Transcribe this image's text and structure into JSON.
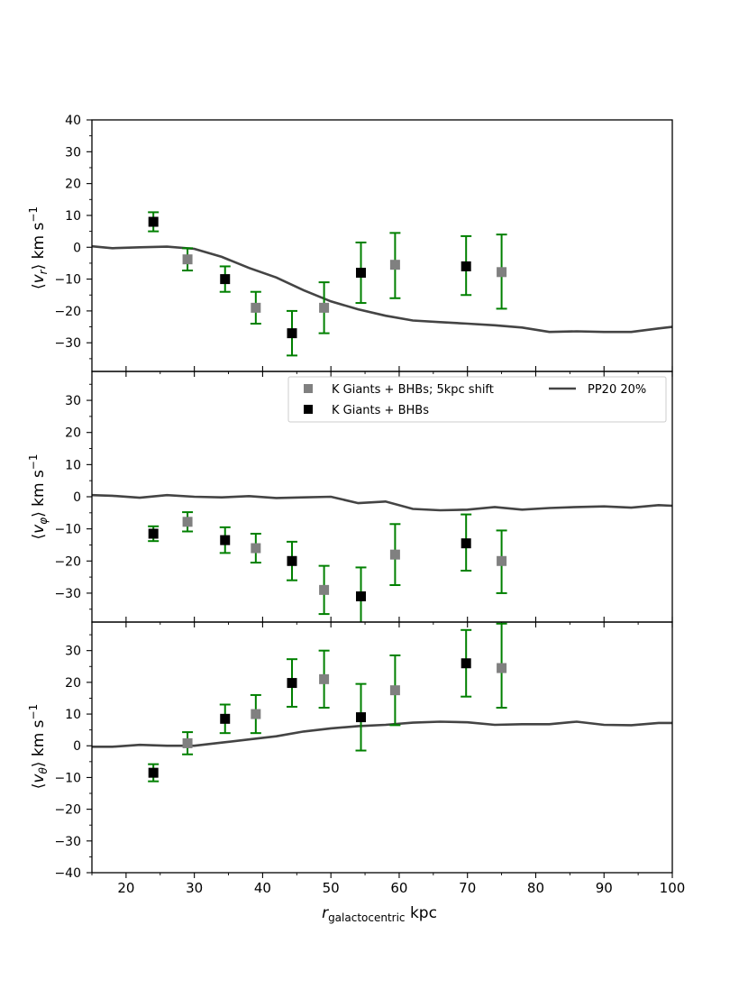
{
  "figure": {
    "xlabel_main": "r",
    "xlabel_sub": "galactocentric",
    "xlabel_unit": "kpc"
  },
  "legend": {
    "shifted_label": "K Giants + BHBs; 5kpc shift",
    "main_label": "K Giants + BHBs",
    "model_label": "PP20 20%",
    "placement": "top-right of middle panel"
  },
  "colors": {
    "shifted": "#808080",
    "main": "#000000",
    "errorbar": "#008000",
    "model": "#444444"
  },
  "chart_data": [
    {
      "type": "scatter",
      "panel": "vr",
      "ylabel_sym": "v",
      "ylabel_sub": "r",
      "ylabel_unit": "km s",
      "xlim": [
        15,
        100
      ],
      "ylim": [
        -39,
        40
      ],
      "xticks": [
        20,
        30,
        40,
        50,
        60,
        70,
        80,
        90,
        100
      ],
      "yticks": [
        -30,
        -20,
        -10,
        0,
        10,
        20,
        30,
        40
      ],
      "series": [
        {
          "name": "K Giants + BHBs",
          "x": [
            24,
            34.5,
            44.3,
            54.4,
            69.8
          ],
          "y": [
            8,
            -10,
            -27,
            -8,
            -6
          ],
          "yerr_low": [
            3,
            4,
            7,
            9.5,
            9
          ],
          "yerr_high": [
            3,
            4,
            7,
            9.5,
            9.5
          ]
        },
        {
          "name": "K Giants + BHBs; 5kpc shift",
          "x": [
            29,
            39,
            49,
            59.4,
            75
          ],
          "y": [
            -3.8,
            -19,
            -19,
            -5.5,
            -7.8
          ],
          "yerr_low": [
            3.5,
            5,
            8,
            10.5,
            11.5
          ],
          "yerr_high": [
            3.5,
            5,
            8,
            10,
            11.8
          ]
        },
        {
          "name": "PP20 20%",
          "x": [
            15,
            18,
            22,
            26,
            30,
            34,
            38,
            42,
            46,
            50,
            54,
            58,
            62,
            66,
            70,
            74,
            78,
            82,
            86,
            90,
            94,
            98,
            100
          ],
          "y": [
            0.3,
            -0.3,
            0,
            0.2,
            -0.5,
            -3,
            -6.5,
            -9.5,
            -13.5,
            -17,
            -19.5,
            -21.5,
            -23,
            -23.5,
            -24,
            -24.5,
            -25.2,
            -26.6,
            -26.4,
            -26.6,
            -26.6,
            -25.5,
            -25
          ]
        }
      ]
    },
    {
      "type": "scatter",
      "panel": "vphi",
      "ylabel_sym": "v",
      "ylabel_sub": "φ",
      "ylabel_unit": "km s",
      "xlim": [
        15,
        100
      ],
      "ylim": [
        -39,
        39
      ],
      "xticks": [
        20,
        30,
        40,
        50,
        60,
        70,
        80,
        90,
        100
      ],
      "yticks": [
        -30,
        -20,
        -10,
        0,
        10,
        20,
        30
      ],
      "series": [
        {
          "name": "K Giants + BHBs",
          "x": [
            24,
            34.5,
            44.3,
            54.4,
            69.8
          ],
          "y": [
            -11.5,
            -13.5,
            -20,
            -31,
            -14.5
          ],
          "yerr_low": [
            2.3,
            4,
            6,
            9,
            8.5
          ],
          "yerr_high": [
            2.3,
            4,
            6,
            9,
            9
          ]
        },
        {
          "name": "K Giants + BHBs; 5kpc shift",
          "x": [
            29,
            39,
            49,
            59.4,
            75
          ],
          "y": [
            -7.8,
            -16,
            -29,
            -18,
            -20
          ],
          "yerr_low": [
            3,
            4.5,
            7.5,
            9.5,
            10
          ],
          "yerr_high": [
            3,
            4.5,
            7.5,
            9.5,
            9.5
          ]
        },
        {
          "name": "PP20 20%",
          "x": [
            15,
            18,
            22,
            26,
            30,
            34,
            38,
            42,
            46,
            50,
            54,
            58,
            62,
            66,
            70,
            74,
            78,
            82,
            86,
            90,
            94,
            98,
            100
          ],
          "y": [
            0.5,
            0.3,
            -0.3,
            0.5,
            0,
            -0.2,
            0.2,
            -0.4,
            -0.2,
            0,
            -2,
            -1.5,
            -3.8,
            -4.2,
            -4,
            -3.2,
            -4,
            -3.5,
            -3.2,
            -3,
            -3.4,
            -2.6,
            -2.8
          ]
        }
      ]
    },
    {
      "type": "scatter",
      "panel": "vtheta",
      "ylabel_sym": "v",
      "ylabel_sub": "θ",
      "ylabel_unit": "km s",
      "xlim": [
        15,
        100
      ],
      "ylim": [
        -40,
        39
      ],
      "xticks": [
        20,
        30,
        40,
        50,
        60,
        70,
        80,
        90,
        100
      ],
      "yticks": [
        -40,
        -30,
        -20,
        -10,
        0,
        10,
        20,
        30
      ],
      "series": [
        {
          "name": "K Giants + BHBs",
          "x": [
            24,
            34.5,
            44.3,
            54.4,
            69.8
          ],
          "y": [
            -8.5,
            8.5,
            19.8,
            9,
            26
          ],
          "yerr_low": [
            2.7,
            4.5,
            7.5,
            10.5,
            10.5
          ],
          "yerr_high": [
            2.7,
            4.5,
            7.5,
            10.5,
            10.5
          ]
        },
        {
          "name": "K Giants + BHBs; 5kpc shift",
          "x": [
            29,
            39,
            49,
            59.4,
            75
          ],
          "y": [
            0.8,
            10,
            21,
            17.5,
            24.5
          ],
          "yerr_low": [
            3.5,
            6,
            9,
            11,
            12.5
          ],
          "yerr_high": [
            3.5,
            6,
            9,
            11,
            14
          ]
        },
        {
          "name": "PP20 20%",
          "x": [
            15,
            18,
            22,
            26,
            30,
            34,
            38,
            42,
            46,
            50,
            54,
            58,
            62,
            66,
            70,
            74,
            78,
            82,
            86,
            90,
            94,
            98,
            100
          ],
          "y": [
            -0.3,
            -0.3,
            0.3,
            0,
            0,
            1,
            2,
            3,
            4.5,
            5.5,
            6.2,
            6.6,
            7.3,
            7.6,
            7.4,
            6.6,
            6.8,
            6.8,
            7.6,
            6.6,
            6.5,
            7.2,
            7.2
          ]
        }
      ]
    }
  ]
}
